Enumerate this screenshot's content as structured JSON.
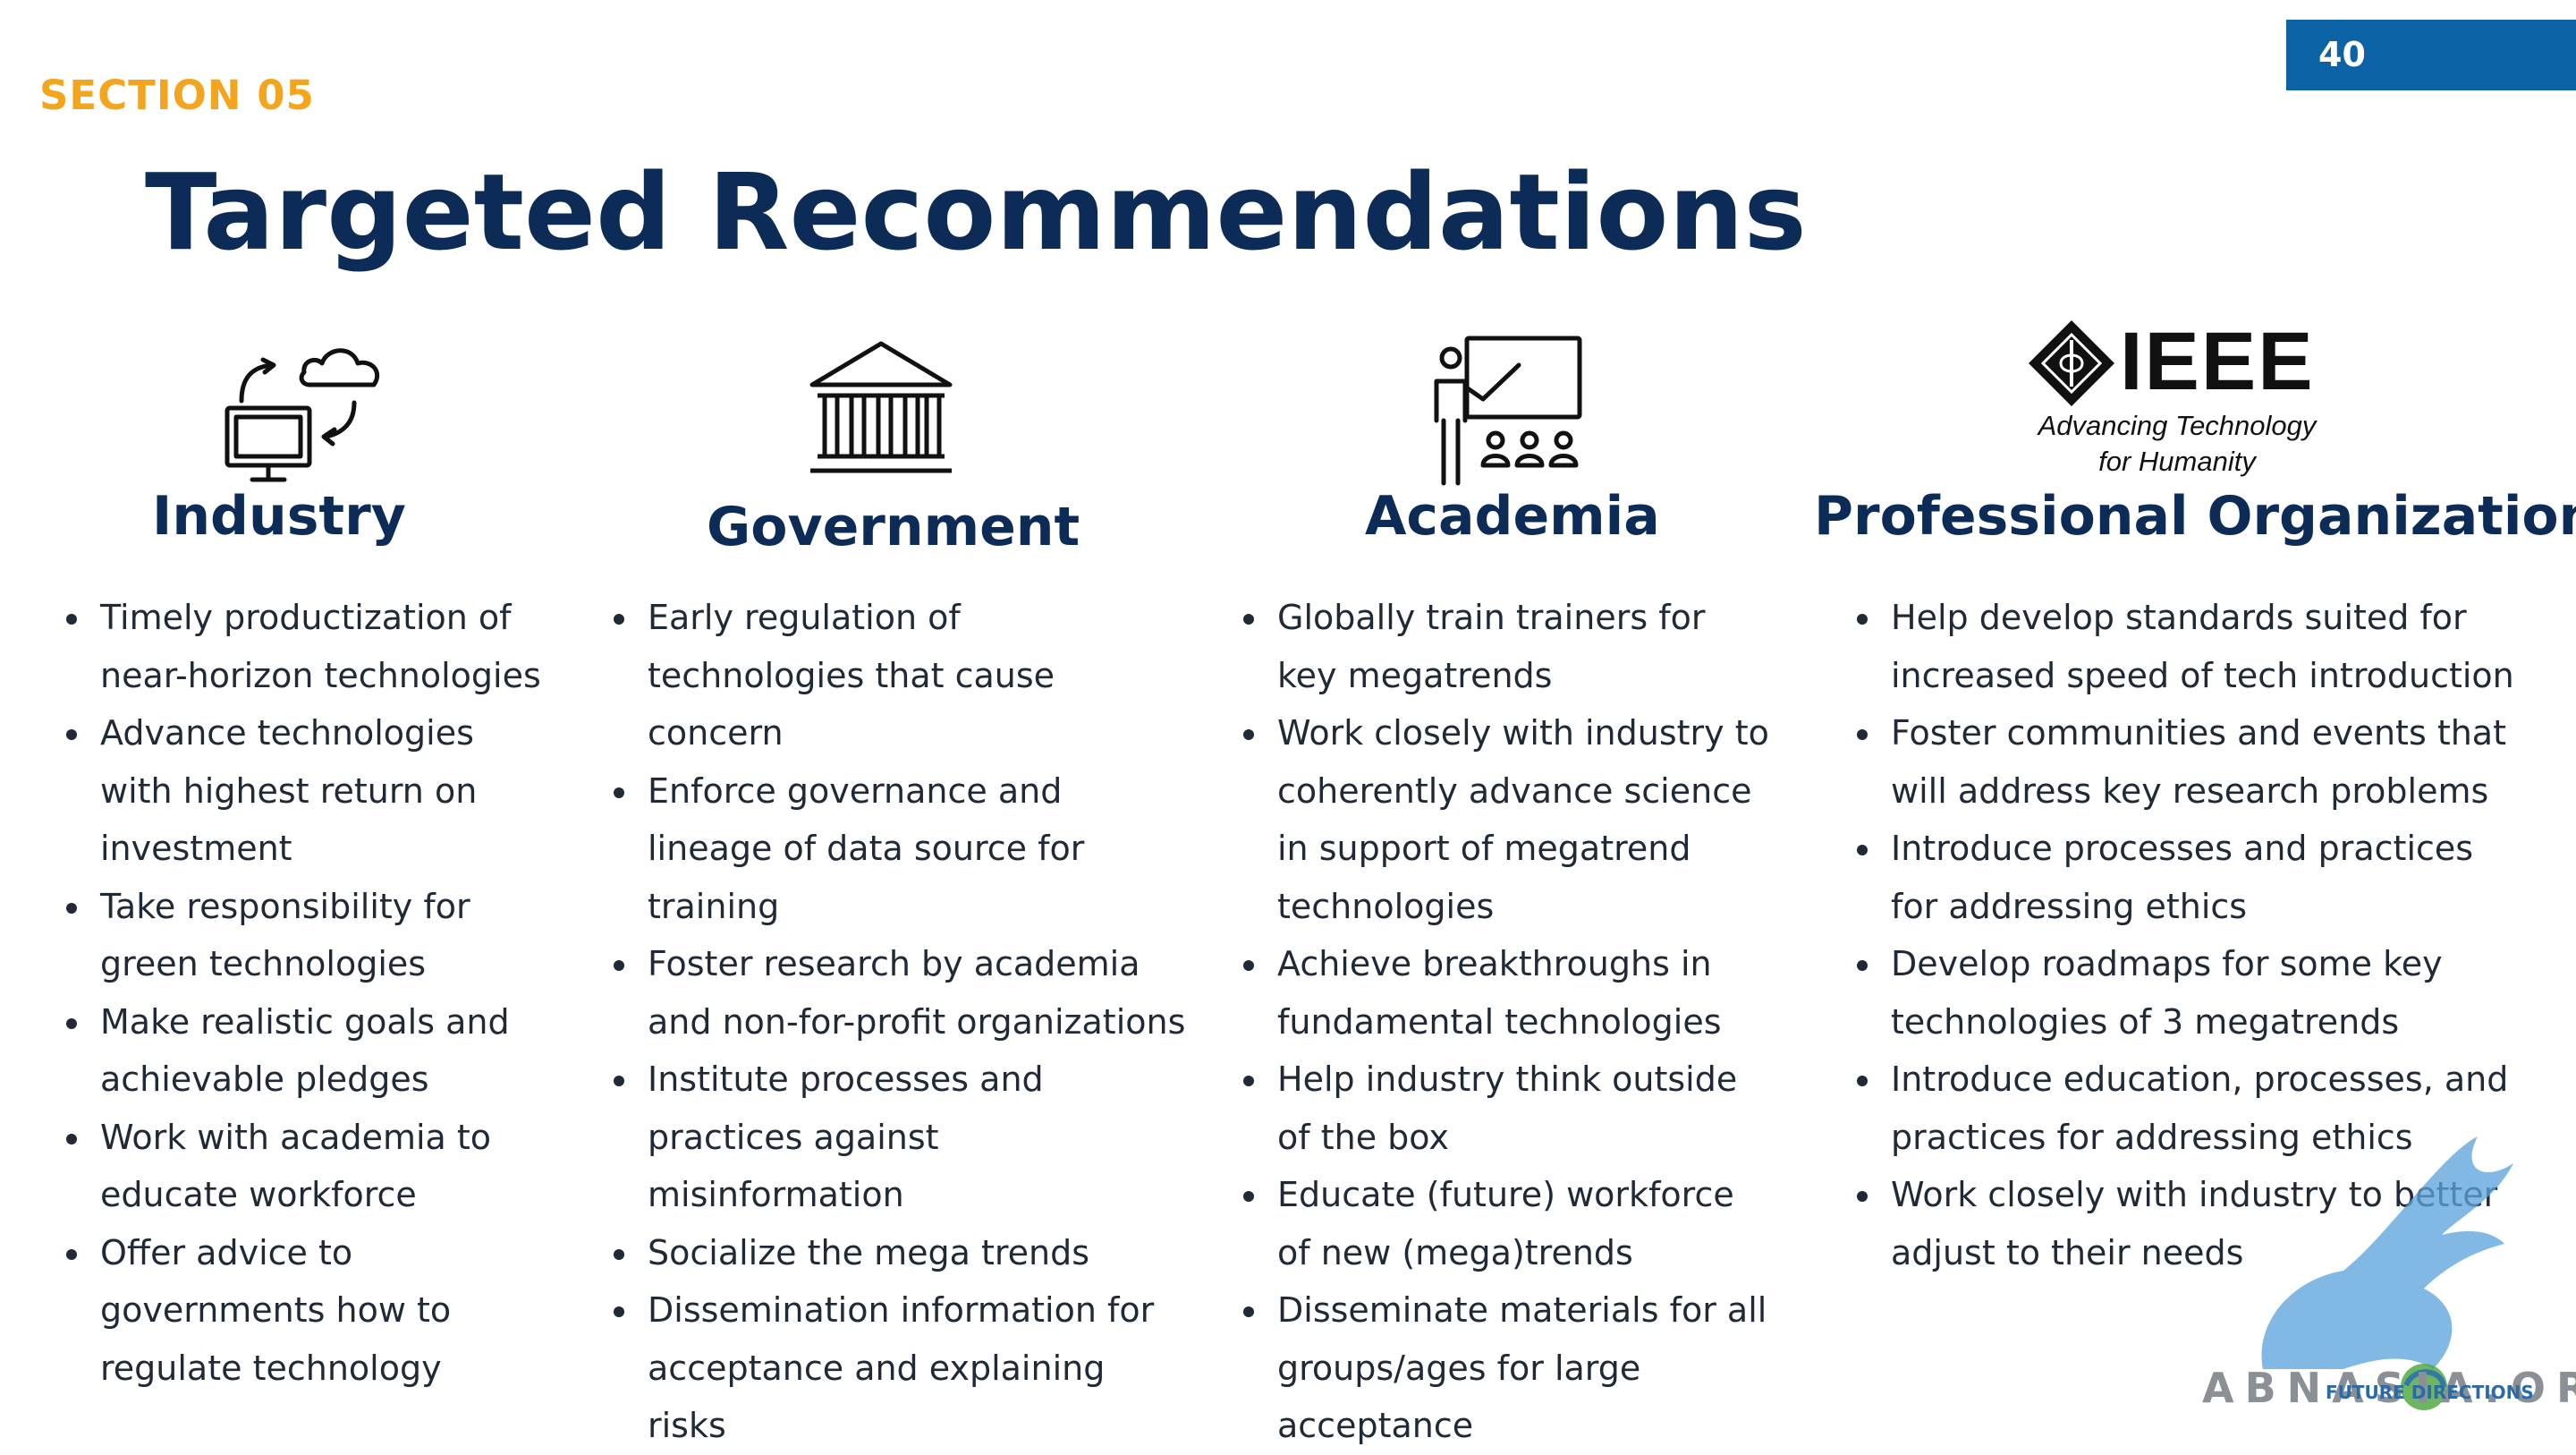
{
  "page_number": "40",
  "section_label": "SECTION 05",
  "title": "Targeted Recommendations",
  "icons": {
    "industry": "cloud-computer-sync-icon",
    "government": "government-building-icon",
    "academia": "classroom-teacher-icon",
    "professional": "ieee-logo"
  },
  "ieee_logo": {
    "word": "IEEE",
    "tagline_line1": "Advancing Technology",
    "tagline_line2": "for Humanity"
  },
  "columns": [
    {
      "title": "Industry",
      "items": [
        "Timely productization of near-horizon technologies",
        "Advance technologies with highest return on investment",
        "Take responsibility for green technologies",
        "Make realistic goals and achievable pledges",
        "Work with academia to educate workforce",
        "Offer advice to governments how to regulate technology"
      ]
    },
    {
      "title": "Government",
      "items": [
        "Early regulation of technologies that cause concern",
        "Enforce governance and lineage of data source for training",
        "Foster research by academia and non-for-profit organizations",
        "Institute processes and practices against misinformation",
        "Socialize the mega trends",
        "Dissemination information for acceptance and explaining risks"
      ]
    },
    {
      "title": "Academia",
      "items": [
        "Globally train trainers for key megatrends",
        "Work closely with industry to coherently advance science in support of megatrend technologies",
        "Achieve breakthroughs in fundamental technologies",
        "Help industry think outside of the box",
        "Educate (future) workforce of new (mega)trends",
        "Disseminate materials for all groups/ages for large acceptance"
      ]
    },
    {
      "title": "Professional Organization",
      "items": [
        "Help develop standards suited for increased speed of tech introduction",
        "Foster communities and events that will address key research problems",
        "Introduce processes and practices for addressing ethics",
        "Develop roadmaps for some key technologies of 3 megatrends",
        "Introduce education, processes, and practices for addressing ethics",
        "Work closely with industry to better adjust to their needs"
      ]
    }
  ],
  "watermark": {
    "text": "ABNASIA.ORG",
    "sub": "FUTURE DIRECTIONS"
  },
  "colors": {
    "title": "#0c2c57",
    "section": "#f2a51d",
    "badge": "#0b63a6"
  }
}
